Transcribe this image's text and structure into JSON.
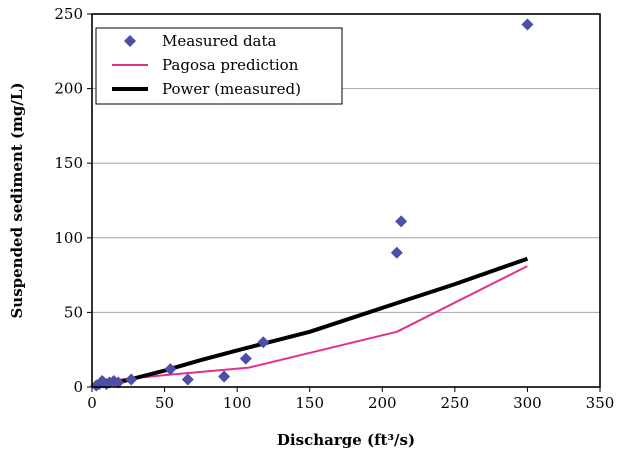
{
  "chart_data": {
    "type": "scatter",
    "xlabel": "Discharge (ft³/s)",
    "ylabel": "Suspended sediment (mg/L)",
    "xlim": [
      0,
      350
    ],
    "ylim": [
      0,
      250
    ],
    "xticks": [
      0,
      50,
      100,
      150,
      200,
      250,
      300,
      350
    ],
    "yticks": [
      0,
      50,
      100,
      150,
      200,
      250
    ],
    "grid": "horizontal",
    "legend_position": "top-left",
    "series": [
      {
        "name": "Measured data",
        "kind": "scatter",
        "marker": "diamond",
        "color": "#4b4fa6",
        "points": [
          [
            3,
            1
          ],
          [
            5,
            2
          ],
          [
            7,
            4
          ],
          [
            8,
            3
          ],
          [
            10,
            2
          ],
          [
            12,
            3
          ],
          [
            15,
            4
          ],
          [
            18,
            3
          ],
          [
            27,
            5
          ],
          [
            54,
            12
          ],
          [
            66,
            5
          ],
          [
            91,
            7
          ],
          [
            106,
            19
          ],
          [
            118,
            30
          ],
          [
            210,
            90
          ],
          [
            213,
            111
          ],
          [
            300,
            243
          ]
        ]
      },
      {
        "name": "Pagosa prediction",
        "kind": "line",
        "color": "#e2308e",
        "points": [
          [
            5,
            2
          ],
          [
            20,
            5
          ],
          [
            50,
            8
          ],
          [
            108,
            13
          ],
          [
            210,
            37
          ],
          [
            300,
            81
          ]
        ]
      },
      {
        "name": "Power (measured)",
        "kind": "line",
        "color": "#000000",
        "points": [
          [
            3,
            0.3
          ],
          [
            10,
            1.5
          ],
          [
            20,
            3.5
          ],
          [
            30,
            6
          ],
          [
            50,
            11
          ],
          [
            75,
            18
          ],
          [
            100,
            24.5
          ],
          [
            150,
            37
          ],
          [
            200,
            53
          ],
          [
            250,
            69
          ],
          [
            300,
            86
          ]
        ]
      }
    ]
  }
}
